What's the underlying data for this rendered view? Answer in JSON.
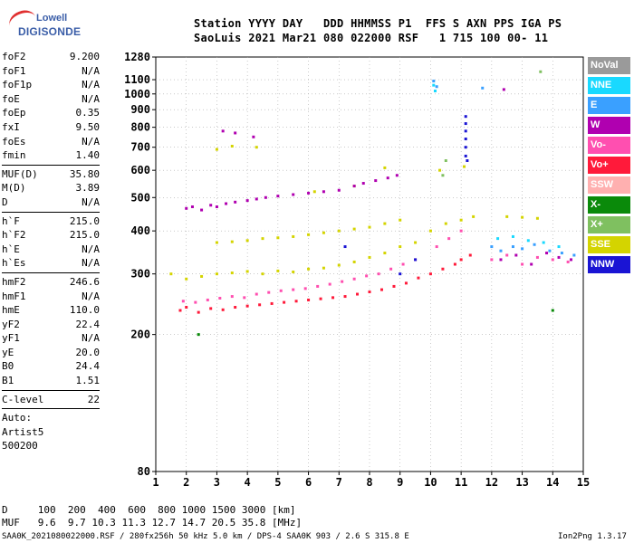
{
  "logo": {
    "top": "Lowell",
    "bottom": "DIGISONDE"
  },
  "header": {
    "line1": "Station YYYY DAY   DDD HHMMSS P1  FFS S AXN PPS IGA PS",
    "line2": "SaoLuis 2021 Mar21 080 022000 RSF   1 715 100 00- 11"
  },
  "params_group1": [
    {
      "label": "foF2",
      "value": "9.200"
    },
    {
      "label": "foF1",
      "value": "N/A"
    },
    {
      "label": "foF1p",
      "value": "N/A"
    },
    {
      "label": "foE",
      "value": "N/A"
    },
    {
      "label": "foEp",
      "value": "0.35"
    },
    {
      "label": "fxI",
      "value": "9.50"
    },
    {
      "label": "foEs",
      "value": "N/A"
    },
    {
      "label": "fmin",
      "value": "1.40"
    }
  ],
  "params_group2": [
    {
      "label": "MUF(D)",
      "value": "35.80"
    },
    {
      "label": "M(D)",
      "value": "3.89"
    },
    {
      "label": "D",
      "value": "N/A"
    }
  ],
  "params_group3": [
    {
      "label": "h`F",
      "value": "215.0"
    },
    {
      "label": "h`F2",
      "value": "215.0"
    },
    {
      "label": "h`E",
      "value": "N/A"
    },
    {
      "label": "h`Es",
      "value": "N/A"
    }
  ],
  "params_group4": [
    {
      "label": "hmF2",
      "value": "246.6"
    },
    {
      "label": "hmF1",
      "value": "N/A"
    },
    {
      "label": "hmE",
      "value": "110.0"
    },
    {
      "label": "yF2",
      "value": "22.4"
    },
    {
      "label": "yF1",
      "value": "N/A"
    },
    {
      "label": "yE",
      "value": "20.0"
    },
    {
      "label": "B0",
      "value": "24.4"
    },
    {
      "label": "B1",
      "value": "1.51"
    }
  ],
  "params_group5": [
    {
      "label": "C-level",
      "value": "22"
    }
  ],
  "autoscale": {
    "line1": "Auto:",
    "line2": "Artist5",
    "line3": "500200"
  },
  "legend": [
    {
      "label": "NoVal",
      "color": "#9a9a9a"
    },
    {
      "label": "NNE",
      "color": "#19d9ff"
    },
    {
      "label": "E",
      "color": "#3aa0ff"
    },
    {
      "label": "W",
      "color": "#b000b0"
    },
    {
      "label": "Vo-",
      "color": "#ff4fb0"
    },
    {
      "label": "Vo+",
      "color": "#ff1a3a"
    },
    {
      "label": "SSW",
      "color": "#ffb0b0"
    },
    {
      "label": "X-",
      "color": "#0a8a0a"
    },
    {
      "label": "X+",
      "color": "#7fc060"
    },
    {
      "label": "SSE",
      "color": "#d4d400"
    },
    {
      "label": "NNW",
      "color": "#1a14d4"
    }
  ],
  "footer": {
    "line1": "D     100  200  400  600  800 1000 1500 3000 [km]",
    "line2": "MUF   9.6  9.7 10.3 11.3 12.7 14.7 20.5 35.8 [MHz]",
    "line3": "SAA0K_2021080022000.RSF / 280fx256h 50 kHz 5.0 km / DPS-4 SAA0K 903 / 2.6 S 315.8 E",
    "version": "Ion2Png 1.3.17"
  },
  "chart_data": {
    "type": "scatter",
    "title": "",
    "xlabel": "",
    "ylabel": "",
    "xlim": [
      1,
      15
    ],
    "ylim": [
      80,
      1280
    ],
    "y_scale": "log",
    "x_ticks": [
      1,
      2,
      3,
      4,
      5,
      6,
      7,
      8,
      9,
      10,
      11,
      12,
      13,
      14,
      15
    ],
    "y_ticks": [
      80,
      200,
      300,
      400,
      500,
      600,
      700,
      800,
      900,
      1000,
      1100,
      1280
    ],
    "grid": "dotted",
    "series": [
      {
        "color": "#ff1a3a",
        "description": "Vo+",
        "points": [
          [
            1.8,
            235
          ],
          [
            2.0,
            240
          ],
          [
            2.4,
            232
          ],
          [
            2.8,
            238
          ],
          [
            3.2,
            236
          ],
          [
            3.6,
            240
          ],
          [
            4.0,
            242
          ],
          [
            4.4,
            244
          ],
          [
            4.8,
            246
          ],
          [
            5.2,
            248
          ],
          [
            5.6,
            250
          ],
          [
            6.0,
            252
          ],
          [
            6.4,
            254
          ],
          [
            6.8,
            256
          ],
          [
            7.2,
            258
          ],
          [
            7.6,
            262
          ],
          [
            8.0,
            266
          ],
          [
            8.4,
            270
          ],
          [
            8.8,
            276
          ],
          [
            9.2,
            282
          ],
          [
            9.6,
            292
          ],
          [
            10.0,
            300
          ],
          [
            10.4,
            310
          ],
          [
            10.8,
            320
          ],
          [
            11.0,
            330
          ],
          [
            11.3,
            340
          ]
        ]
      },
      {
        "color": "#ff4fb0",
        "description": "Vo-",
        "points": [
          [
            1.9,
            250
          ],
          [
            2.3,
            248
          ],
          [
            2.7,
            252
          ],
          [
            3.1,
            255
          ],
          [
            3.5,
            258
          ],
          [
            3.9,
            256
          ],
          [
            4.3,
            262
          ],
          [
            4.7,
            265
          ],
          [
            5.1,
            268
          ],
          [
            5.5,
            270
          ],
          [
            5.9,
            272
          ],
          [
            6.3,
            276
          ],
          [
            6.7,
            280
          ],
          [
            7.1,
            285
          ],
          [
            7.5,
            290
          ],
          [
            7.9,
            296
          ],
          [
            8.3,
            300
          ],
          [
            8.7,
            310
          ],
          [
            9.1,
            320
          ],
          [
            9.5,
            330
          ],
          [
            10.2,
            360
          ],
          [
            10.6,
            380
          ],
          [
            11.0,
            400
          ],
          [
            12.0,
            330
          ],
          [
            12.5,
            340
          ],
          [
            13.0,
            320
          ],
          [
            13.5,
            335
          ],
          [
            14.0,
            330
          ],
          [
            14.5,
            325
          ]
        ]
      },
      {
        "color": "#d4d400",
        "description": "SSE",
        "points": [
          [
            1.5,
            300
          ],
          [
            2.0,
            290
          ],
          [
            2.5,
            295
          ],
          [
            3.0,
            300
          ],
          [
            3.5,
            302
          ],
          [
            4.0,
            305
          ],
          [
            4.5,
            300
          ],
          [
            5.0,
            306
          ],
          [
            5.5,
            304
          ],
          [
            6.0,
            310
          ],
          [
            6.5,
            312
          ],
          [
            7.0,
            318
          ],
          [
            7.5,
            325
          ],
          [
            8.0,
            335
          ],
          [
            8.5,
            345
          ],
          [
            9.0,
            360
          ],
          [
            9.5,
            370
          ],
          [
            10.0,
            400
          ],
          [
            10.5,
            420
          ],
          [
            11.0,
            430
          ],
          [
            11.4,
            440
          ],
          [
            12.5,
            440
          ],
          [
            13.0,
            438
          ],
          [
            13.5,
            435
          ],
          [
            3.0,
            370
          ],
          [
            3.5,
            372
          ],
          [
            4.0,
            375
          ],
          [
            4.5,
            380
          ],
          [
            5.0,
            382
          ],
          [
            5.5,
            385
          ],
          [
            6.0,
            390
          ],
          [
            6.5,
            395
          ],
          [
            7.0,
            400
          ],
          [
            7.5,
            405
          ],
          [
            8.0,
            410
          ],
          [
            8.5,
            420
          ],
          [
            9.0,
            430
          ],
          [
            3.0,
            690
          ],
          [
            3.5,
            705
          ],
          [
            4.3,
            700
          ],
          [
            6.2,
            520
          ],
          [
            7.5,
            540
          ],
          [
            8.5,
            610
          ],
          [
            10.3,
            600
          ],
          [
            11.1,
            615
          ]
        ]
      },
      {
        "color": "#b000b0",
        "description": "W",
        "points": [
          [
            2.0,
            465
          ],
          [
            2.2,
            470
          ],
          [
            2.5,
            460
          ],
          [
            2.8,
            475
          ],
          [
            3.0,
            470
          ],
          [
            3.3,
            480
          ],
          [
            3.6,
            485
          ],
          [
            4.0,
            490
          ],
          [
            4.3,
            495
          ],
          [
            4.6,
            500
          ],
          [
            5.0,
            505
          ],
          [
            5.5,
            510
          ],
          [
            6.0,
            515
          ],
          [
            6.5,
            520
          ],
          [
            7.0,
            525
          ],
          [
            7.5,
            540
          ],
          [
            7.8,
            550
          ],
          [
            8.2,
            560
          ],
          [
            8.6,
            570
          ],
          [
            8.9,
            580
          ],
          [
            3.2,
            780
          ],
          [
            3.6,
            770
          ],
          [
            4.2,
            750
          ],
          [
            12.3,
            330
          ],
          [
            12.8,
            340
          ],
          [
            13.3,
            320
          ],
          [
            13.8,
            345
          ],
          [
            14.2,
            335
          ],
          [
            14.6,
            330
          ],
          [
            12.4,
            1030
          ]
        ]
      },
      {
        "color": "#3aa0ff",
        "description": "E",
        "points": [
          [
            12.0,
            360
          ],
          [
            12.3,
            350
          ],
          [
            12.7,
            360
          ],
          [
            13.0,
            355
          ],
          [
            13.4,
            365
          ],
          [
            13.9,
            350
          ],
          [
            14.3,
            345
          ],
          [
            14.7,
            340
          ],
          [
            10.1,
            1090
          ],
          [
            10.2,
            1050
          ],
          [
            11.7,
            1040
          ]
        ]
      },
      {
        "color": "#19d9ff",
        "description": "NNE",
        "points": [
          [
            12.2,
            380
          ],
          [
            12.7,
            385
          ],
          [
            13.2,
            375
          ],
          [
            13.7,
            370
          ],
          [
            14.2,
            360
          ],
          [
            10.1,
            1060
          ],
          [
            10.15,
            1020
          ]
        ]
      },
      {
        "color": "#1a14d4",
        "description": "NNW",
        "points": [
          [
            11.15,
            860
          ],
          [
            11.15,
            820
          ],
          [
            11.15,
            780
          ],
          [
            11.15,
            740
          ],
          [
            11.15,
            700
          ],
          [
            11.15,
            660
          ],
          [
            11.2,
            640
          ],
          [
            9.0,
            300
          ],
          [
            9.5,
            330
          ],
          [
            7.2,
            360
          ]
        ]
      },
      {
        "color": "#7fc060",
        "description": "X+",
        "points": [
          [
            10.5,
            640
          ],
          [
            13.6,
            1160
          ],
          [
            10.4,
            580
          ]
        ]
      },
      {
        "color": "#0a8a0a",
        "description": "X-",
        "points": [
          [
            14.0,
            235
          ],
          [
            2.4,
            200
          ]
        ]
      }
    ]
  }
}
